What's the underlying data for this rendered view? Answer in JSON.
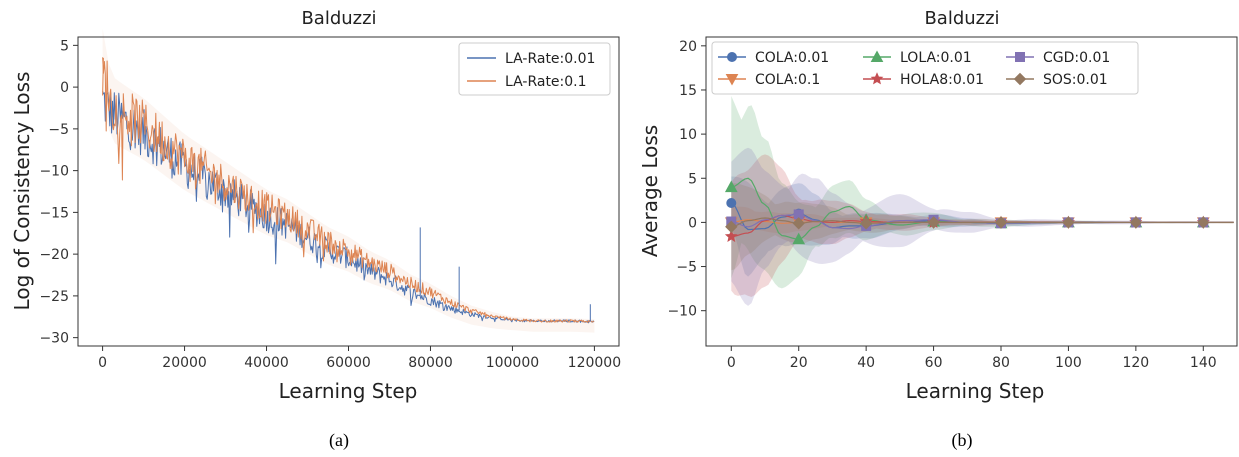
{
  "chart_data": [
    {
      "type": "line",
      "panel_caption": "(a)",
      "title": "Balduzzi",
      "xlabel": "Learning Step",
      "ylabel": "Log of Consistency Loss",
      "xlim": [
        -6000,
        126000
      ],
      "ylim": [
        -31,
        6
      ],
      "xticks": [
        0,
        20000,
        40000,
        60000,
        80000,
        100000,
        120000
      ],
      "yticks": [
        5,
        0,
        -5,
        -10,
        -15,
        -20,
        -25,
        -30
      ],
      "grid": false,
      "legend_position": "top-right",
      "series": [
        {
          "name": "LA-Rate:0.01",
          "color": "#4c72b0",
          "x": [
            0,
            2000,
            5000,
            10000,
            15000,
            20000,
            25000,
            30000,
            35000,
            40000,
            45000,
            50000,
            55000,
            60000,
            65000,
            70000,
            75000,
            80000,
            85000,
            90000,
            95000,
            100000,
            105000,
            110000,
            115000,
            120000
          ],
          "y": [
            -1.5,
            -3,
            -4,
            -5.5,
            -7.5,
            -9.5,
            -11,
            -12.5,
            -14,
            -15.5,
            -16.5,
            -18,
            -19.5,
            -20.5,
            -22,
            -23,
            -24.5,
            -25.5,
            -26.5,
            -27.2,
            -27.6,
            -27.9,
            -28,
            -28,
            -28,
            -28.1
          ]
        },
        {
          "name": "LA-Rate:0.1",
          "color": "#dd8452",
          "x": [
            0,
            2000,
            5000,
            10000,
            15000,
            20000,
            25000,
            30000,
            35000,
            40000,
            45000,
            50000,
            55000,
            60000,
            65000,
            70000,
            75000,
            80000,
            85000,
            90000,
            95000,
            100000,
            105000,
            110000,
            115000,
            120000
          ],
          "y": [
            3.5,
            -2,
            -3,
            -4.5,
            -6.5,
            -8.5,
            -10,
            -11.5,
            -13,
            -14.5,
            -15.5,
            -17,
            -18.5,
            -19.5,
            -21,
            -22,
            -23.5,
            -24.5,
            -25.8,
            -26.8,
            -27.4,
            -27.8,
            -28,
            -28,
            -28,
            -28.1
          ]
        }
      ]
    },
    {
      "type": "line",
      "panel_caption": "(b)",
      "title": "Balduzzi",
      "xlabel": "Learning Step",
      "ylabel": "Average Loss",
      "xlim": [
        -7.5,
        150
      ],
      "ylim": [
        -14,
        21
      ],
      "xticks": [
        0,
        20,
        40,
        60,
        80,
        100,
        120,
        140
      ],
      "yticks": [
        20,
        15,
        10,
        5,
        0,
        -5,
        -10
      ],
      "grid": false,
      "legend_position": "top",
      "marker_x": [
        0,
        20,
        40,
        60,
        80,
        100,
        120,
        140
      ],
      "series": [
        {
          "name": "COLA:0.01",
          "color": "#4c72b0",
          "marker": "circle",
          "x": [
            0,
            5,
            10,
            15,
            20,
            25,
            30,
            35,
            40,
            50,
            60,
            70,
            80,
            100,
            120,
            140,
            149
          ],
          "y": [
            2.2,
            -0.8,
            -0.7,
            0.6,
            1.0,
            0.3,
            -0.6,
            -0.4,
            -0.4,
            0.0,
            0.2,
            0.0,
            -0.1,
            0.0,
            0.0,
            0.0,
            0.0
          ],
          "band": [
            3,
            6,
            5,
            4,
            3.5,
            3,
            2.5,
            2,
            1.5,
            1,
            0.8,
            0.5,
            0.3,
            0.2,
            0.1,
            0.1,
            0.1
          ]
        },
        {
          "name": "COLA:0.1",
          "color": "#dd8452",
          "marker": "triangle-down",
          "x": [
            0,
            5,
            10,
            15,
            20,
            25,
            30,
            35,
            40,
            50,
            60,
            70,
            80,
            100,
            120,
            140,
            149
          ],
          "y": [
            0.0,
            0.3,
            0.1,
            -0.1,
            0.0,
            0.1,
            0.0,
            0.0,
            0.0,
            0.0,
            0.0,
            0.0,
            0.0,
            0.0,
            0.0,
            0.0,
            0.0
          ],
          "band": [
            2,
            2,
            1.5,
            1.2,
            1,
            1,
            0.8,
            0.6,
            0.5,
            0.4,
            0.3,
            0.2,
            0.2,
            0.1,
            0.1,
            0.1,
            0.1
          ]
        },
        {
          "name": "LOLA:0.01",
          "color": "#55a868",
          "marker": "triangle-up",
          "x": [
            0,
            5,
            10,
            15,
            20,
            25,
            30,
            35,
            40,
            50,
            60,
            70,
            80,
            100,
            120,
            140,
            149
          ],
          "y": [
            4.0,
            5.0,
            2.0,
            -1.5,
            -1.9,
            -0.5,
            1.2,
            1.8,
            0.3,
            -0.3,
            0.1,
            0.0,
            -0.1,
            0.0,
            0.0,
            0.0,
            0.0
          ],
          "band": [
            14,
            12,
            8,
            6,
            5,
            4,
            3.5,
            3,
            2.5,
            1.5,
            1,
            0.6,
            0.4,
            0.2,
            0.1,
            0.1,
            0.1
          ]
        },
        {
          "name": "HOLA8:0.01",
          "color": "#c44e52",
          "marker": "star",
          "x": [
            0,
            5,
            10,
            15,
            20,
            25,
            30,
            35,
            40,
            50,
            60,
            70,
            80,
            100,
            120,
            140,
            149
          ],
          "y": [
            -1.6,
            -1.2,
            0.2,
            0.8,
            0.4,
            0.1,
            0.0,
            0.2,
            0.1,
            0.0,
            0.0,
            0.0,
            0.0,
            0.0,
            0.0,
            0.0,
            0.0
          ],
          "band": [
            10,
            8,
            7.5,
            6,
            4,
            3,
            2.5,
            2,
            1.5,
            1,
            0.6,
            0.4,
            0.3,
            0.2,
            0.1,
            0.1,
            0.1
          ]
        },
        {
          "name": "CGD:0.01",
          "color": "#8172b3",
          "marker": "square",
          "x": [
            0,
            5,
            10,
            15,
            20,
            25,
            30,
            35,
            40,
            50,
            60,
            70,
            80,
            100,
            120,
            140,
            149
          ],
          "y": [
            0.1,
            -0.5,
            0.3,
            0.8,
            0.9,
            0.2,
            -0.6,
            -0.7,
            -0.4,
            0.2,
            0.3,
            0.0,
            -0.1,
            0.0,
            0.0,
            0.0,
            0.0
          ],
          "band": [
            8,
            9,
            6,
            5,
            6,
            5,
            4,
            3.5,
            3,
            3,
            2,
            1.2,
            0.6,
            0.3,
            0.2,
            0.1,
            0.1
          ]
        },
        {
          "name": "SOS:0.01",
          "color": "#937860",
          "marker": "diamond",
          "x": [
            0,
            5,
            10,
            15,
            20,
            25,
            30,
            35,
            40,
            50,
            60,
            70,
            80,
            100,
            120,
            140,
            149
          ],
          "y": [
            -0.5,
            0.2,
            0.5,
            0.2,
            -0.1,
            0.1,
            0.2,
            0.0,
            -0.1,
            0.0,
            0.0,
            0.0,
            0.0,
            0.0,
            0.0,
            0.0,
            0.0
          ],
          "band": [
            5,
            4,
            3.5,
            3,
            2.5,
            2,
            1.8,
            1.5,
            1.2,
            0.8,
            0.5,
            0.3,
            0.2,
            0.1,
            0.1,
            0.1,
            0.1
          ]
        }
      ]
    }
  ]
}
